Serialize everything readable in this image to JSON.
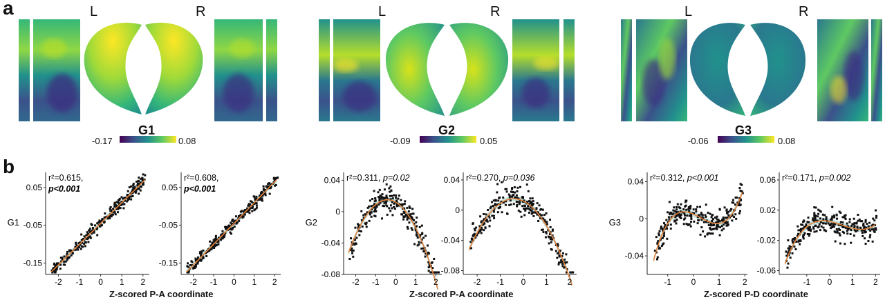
{
  "panel_a_label": "a",
  "panel_b_label": "b",
  "hemisphere": {
    "left": "L",
    "right": "R"
  },
  "gradients": [
    {
      "name": "G1",
      "cb_min": "-0.17",
      "cb_max": "0.08"
    },
    {
      "name": "G2",
      "cb_min": "-0.09",
      "cb_max": "0.05"
    },
    {
      "name": "G3",
      "cb_min": "-0.06",
      "cb_max": "0.08"
    }
  ],
  "colors": {
    "viridis_low": "#440154",
    "viridis_mid": "#21918c",
    "viridis_high": "#fde725",
    "fit": "#e4823b",
    "ci": "#b9dad7",
    "point": "#111111"
  },
  "xlabels": [
    "Z-scored P-A coordinate",
    "Z-scored P-A coordinate",
    "Z-scored P-D coordinate"
  ],
  "chart_data": [
    {
      "type": "scatter",
      "ylabel": "G1",
      "annotation": {
        "r2": "r²=0.615,",
        "p": "p<0.001"
      },
      "x_ticks": [
        "-2",
        "-1",
        "0",
        "1",
        "2"
      ],
      "y_ticks": [
        "0.05",
        "-0.05",
        "-0.15"
      ],
      "xlim": [
        -2.6,
        2.3
      ],
      "ylim": [
        -0.18,
        0.09
      ],
      "fit": "linear",
      "coef": [
        -0.045,
        0.055
      ]
    },
    {
      "type": "scatter",
      "ylabel": "",
      "annotation": {
        "r2": "r²=0.608,",
        "p": "p<0.001"
      },
      "x_ticks": [
        "-2",
        "-1",
        "0",
        "1",
        "2"
      ],
      "y_ticks": [
        "0.05",
        "-0.05",
        "-0.15"
      ],
      "xlim": [
        -2.6,
        2.3
      ],
      "ylim": [
        -0.18,
        0.09
      ],
      "fit": "linear",
      "coef": [
        -0.045,
        0.055
      ]
    },
    {
      "type": "scatter",
      "ylabel": "G2",
      "annotation": {
        "r2": "r²=0.311, ",
        "p": "p=0.02"
      },
      "x_ticks": [
        "-2",
        "-1",
        "0",
        "1",
        "2"
      ],
      "y_ticks": [
        "0.04",
        "0",
        "-0.04",
        "-0.08"
      ],
      "xlim": [
        -2.6,
        2.3
      ],
      "ylim": [
        -0.08,
        0.05
      ],
      "fit": "quadratic",
      "coef": [
        0.012,
        -0.015,
        -0.018
      ]
    },
    {
      "type": "scatter",
      "ylabel": "",
      "annotation": {
        "r2": "r²=0.270, ",
        "p": "p=0.036"
      },
      "x_ticks": [
        "-2",
        "-1",
        "0",
        "1",
        "2"
      ],
      "y_ticks": [
        "0.04",
        "0",
        "-0.04",
        "-0.08"
      ],
      "xlim": [
        -2.6,
        2.3
      ],
      "ylim": [
        -0.085,
        0.05
      ],
      "fit": "quadratic",
      "coef": [
        0.012,
        -0.015,
        -0.018
      ]
    },
    {
      "type": "scatter",
      "ylabel": "G3",
      "annotation": {
        "r2": "r²=0.312, ",
        "p": "p<0.001"
      },
      "x_ticks": [
        "-1",
        "0",
        "1",
        "2"
      ],
      "y_ticks": [
        "0.04",
        "0",
        "-0.04"
      ],
      "xlim": [
        -1.8,
        2.1
      ],
      "ylim": [
        -0.06,
        0.05
      ],
      "fit": "cubic",
      "coef": [
        0.005,
        -0.012,
        -0.01,
        0.012
      ]
    },
    {
      "type": "scatter",
      "ylabel": "",
      "annotation": {
        "r2": "r²=0.171, ",
        "p": "p=0.002"
      },
      "x_ticks": [
        "-1",
        "0",
        "1",
        "2"
      ],
      "y_ticks": [
        "0.06",
        "0.02",
        "-0.02",
        "-0.06"
      ],
      "xlim": [
        -2.2,
        2.2
      ],
      "ylim": [
        -0.065,
        0.07
      ],
      "fit": "cubic",
      "coef": [
        0.005,
        -0.006,
        -0.008,
        0.005
      ]
    }
  ]
}
